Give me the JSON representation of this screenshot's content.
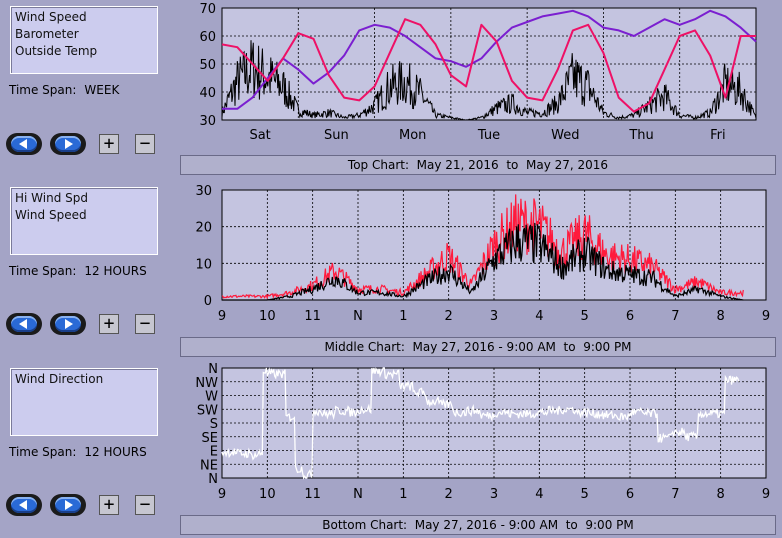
{
  "panels": [
    {
      "legend": [
        "Wind Speed",
        "Barometer",
        "Outside Temp"
      ],
      "timespan_label": "Time Span:",
      "timespan_value": "WEEK",
      "caption": "Top Chart:  May 21, 2016  to  May 27, 2016"
    },
    {
      "legend": [
        "Hi Wind Spd",
        "Wind Speed"
      ],
      "timespan_label": "Time Span:",
      "timespan_value": "12 HOURS",
      "caption": "Middle Chart:  May 27, 2016 - 9:00 AM  to  9:00 PM"
    },
    {
      "legend": [
        "Wind Direction"
      ],
      "timespan_label": "Time Span:",
      "timespan_value": "12 HOURS",
      "caption": "Bottom Chart:  May 27, 2016 - 9:00 AM  to  9:00 PM"
    }
  ],
  "buttons": {
    "plus": "+",
    "minus": "−"
  },
  "colors": {
    "background": "#a4a4c6",
    "plot": "#c4c4e0",
    "wind_speed": "#000000",
    "barometer": "#7b1fd0",
    "outside_temp": "#ee1166",
    "hi_wind": "#ff1a3c",
    "wind_direction": "#ffffff"
  },
  "chart_data": [
    {
      "type": "line",
      "ylim": [
        30,
        70
      ],
      "yticks": [
        30,
        40,
        50,
        60,
        70
      ],
      "xlim": [
        0,
        7
      ],
      "xticks": [
        "Sat",
        "Sun",
        "Mon",
        "Tue",
        "Wed",
        "Thu",
        "Fri"
      ],
      "xtick_positions": [
        0.5,
        1.5,
        2.5,
        3.5,
        4.5,
        5.5,
        6.5
      ],
      "series": [
        {
          "name": "Wind Speed",
          "color": "#000000",
          "style": "noisy",
          "x": [
            0,
            0.2,
            0.4,
            0.6,
            0.8,
            1.0,
            1.2,
            1.4,
            1.6,
            1.8,
            2.0,
            2.2,
            2.4,
            2.6,
            2.8,
            3.0,
            3.2,
            3.4,
            3.6,
            3.8,
            4.0,
            4.2,
            4.4,
            4.6,
            4.8,
            5.0,
            5.2,
            5.4,
            5.6,
            5.8,
            6.0,
            6.2,
            6.4,
            6.6,
            6.8,
            7.0
          ],
          "y": [
            33,
            46,
            52,
            48,
            44,
            34,
            32,
            33,
            31,
            32,
            36,
            44,
            46,
            41,
            32,
            31,
            30,
            31,
            35,
            37,
            33,
            33,
            37,
            48,
            44,
            33,
            31,
            32,
            36,
            40,
            32,
            31,
            33,
            45,
            42,
            31
          ]
        },
        {
          "name": "Barometer",
          "color": "#7b1fd0",
          "style": "smooth",
          "x": [
            0,
            0.2,
            0.4,
            0.6,
            0.8,
            1.0,
            1.2,
            1.4,
            1.6,
            1.8,
            2.0,
            2.2,
            2.4,
            2.6,
            2.8,
            3.0,
            3.2,
            3.4,
            3.6,
            3.8,
            4.0,
            4.2,
            4.4,
            4.6,
            4.8,
            5.0,
            5.2,
            5.4,
            5.6,
            5.8,
            6.0,
            6.2,
            6.4,
            6.6,
            6.8,
            7.0
          ],
          "y": [
            34,
            34,
            38,
            45,
            52,
            48,
            43,
            47,
            53,
            62,
            64,
            63,
            60,
            56,
            52,
            51,
            49,
            52,
            58,
            63,
            65,
            67,
            68,
            69,
            67,
            63,
            62,
            60,
            63,
            66,
            64,
            66,
            69,
            67,
            63,
            58
          ]
        },
        {
          "name": "Outside Temp",
          "color": "#ee1166",
          "style": "smooth",
          "x": [
            0,
            0.2,
            0.4,
            0.6,
            0.8,
            1.0,
            1.2,
            1.4,
            1.6,
            1.8,
            2.0,
            2.2,
            2.4,
            2.6,
            2.8,
            3.0,
            3.2,
            3.4,
            3.6,
            3.8,
            4.0,
            4.2,
            4.4,
            4.6,
            4.8,
            5.0,
            5.2,
            5.4,
            5.6,
            5.8,
            6.0,
            6.2,
            6.4,
            6.6,
            6.8,
            7.0
          ],
          "y": [
            57,
            56,
            50,
            44,
            52,
            61,
            59,
            46,
            38,
            37,
            42,
            54,
            66,
            64,
            57,
            46,
            42,
            64,
            58,
            44,
            38,
            37,
            48,
            62,
            64,
            54,
            38,
            33,
            36,
            48,
            60,
            62,
            53,
            38,
            60,
            60
          ]
        }
      ]
    },
    {
      "type": "line",
      "ylim": [
        0,
        30
      ],
      "yticks": [
        0,
        10,
        20,
        30
      ],
      "xlim": [
        0,
        12
      ],
      "xticks": [
        "9",
        "10",
        "11",
        "N",
        "1",
        "2",
        "3",
        "4",
        "5",
        "6",
        "7",
        "8",
        "9"
      ],
      "series": [
        {
          "name": "Hi Wind Spd",
          "color": "#ff1a3c",
          "style": "noisy",
          "x": [
            0,
            0.5,
            1.0,
            1.5,
            2.0,
            2.5,
            3.0,
            3.5,
            4.0,
            4.5,
            5.0,
            5.5,
            6.0,
            6.5,
            7.0,
            7.5,
            8.0,
            8.5,
            9.0,
            9.5,
            10.0,
            10.5,
            11.0,
            11.5
          ],
          "y": [
            1,
            1,
            1,
            2,
            4,
            8,
            3,
            3,
            2,
            7,
            12,
            4,
            15,
            21,
            20,
            13,
            18,
            12,
            11,
            9,
            3,
            5,
            2,
            2
          ]
        },
        {
          "name": "Wind Speed",
          "color": "#000000",
          "style": "noisy",
          "x": [
            0,
            0.5,
            1.0,
            1.5,
            2.0,
            2.5,
            3.0,
            3.5,
            4.0,
            4.5,
            5.0,
            5.5,
            6.0,
            6.5,
            7.0,
            7.5,
            8.0,
            8.5,
            9.0,
            9.5,
            10.0,
            10.5,
            11.0,
            11.5
          ],
          "y": [
            0,
            0,
            0,
            1,
            3,
            6,
            2,
            2,
            1,
            5,
            8,
            2,
            11,
            16,
            15,
            9,
            13,
            8,
            7,
            6,
            1,
            3,
            1,
            0
          ]
        }
      ]
    },
    {
      "type": "scatter",
      "yticks": [
        "N",
        "NE",
        "E",
        "SE",
        "S",
        "SW",
        "W",
        "NW",
        "N"
      ],
      "ylim": [
        0,
        360
      ],
      "xlim": [
        0,
        12
      ],
      "xticks": [
        "9",
        "10",
        "11",
        "N",
        "1",
        "2",
        "3",
        "4",
        "5",
        "6",
        "7",
        "8",
        "9"
      ],
      "series": [
        {
          "name": "Wind Direction",
          "color": "#ffffff",
          "x": [
            0,
            0.3,
            0.6,
            0.8,
            0.9,
            1.0,
            1.2,
            1.4,
            1.6,
            1.8,
            2.0,
            2.2,
            2.5,
            2.8,
            3.0,
            3.3,
            3.6,
            3.9,
            4.2,
            4.5,
            4.8,
            5.1,
            5.4,
            5.7,
            6.0,
            6.3,
            6.6,
            6.9,
            7.2,
            7.5,
            7.8,
            8.1,
            8.4,
            8.7,
            9.0,
            9.3,
            9.6,
            9.9,
            10.2,
            10.5,
            10.8,
            11.1,
            11.4
          ],
          "y": [
            85,
            80,
            75,
            80,
            350,
            340,
            340,
            200,
            30,
            10,
            220,
            210,
            220,
            215,
            225,
            350,
            340,
            300,
            280,
            250,
            240,
            215,
            220,
            205,
            215,
            210,
            210,
            215,
            220,
            225,
            215,
            210,
            205,
            200,
            215,
            210,
            130,
            150,
            135,
            210,
            210,
            320,
            320
          ]
        }
      ]
    }
  ]
}
